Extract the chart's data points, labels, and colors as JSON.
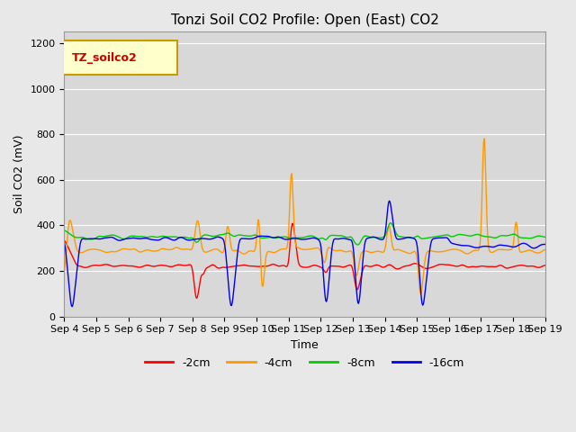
{
  "title": "Tonzi Soil CO2 Profile: Open (East) CO2",
  "xlabel": "Time",
  "ylabel": "Soil CO2 (mV)",
  "ylim": [
    0,
    1250
  ],
  "xlim": [
    0,
    15
  ],
  "background_color": "#e8e8e8",
  "plot_bg_color": "#d8d8d8",
  "legend_label": "TZ_soilco2",
  "series_labels": [
    "-2cm",
    "-4cm",
    "-8cm",
    "-16cm"
  ],
  "series_colors": [
    "#ff0000",
    "#ff9900",
    "#00cc00",
    "#0000ee"
  ],
  "xtick_labels": [
    "Sep 4",
    "Sep 5",
    "Sep 6",
    "Sep 7",
    "Sep 8",
    "Sep 9",
    "Sep 10",
    "Sep 11",
    "Sep 12",
    "Sep 13",
    "Sep 14",
    "Sep 15",
    "Sep 16",
    "Sep 17",
    "Sep 18",
    "Sep 19"
  ],
  "ytick_vals": [
    0,
    200,
    400,
    600,
    800,
    1000,
    1200
  ]
}
